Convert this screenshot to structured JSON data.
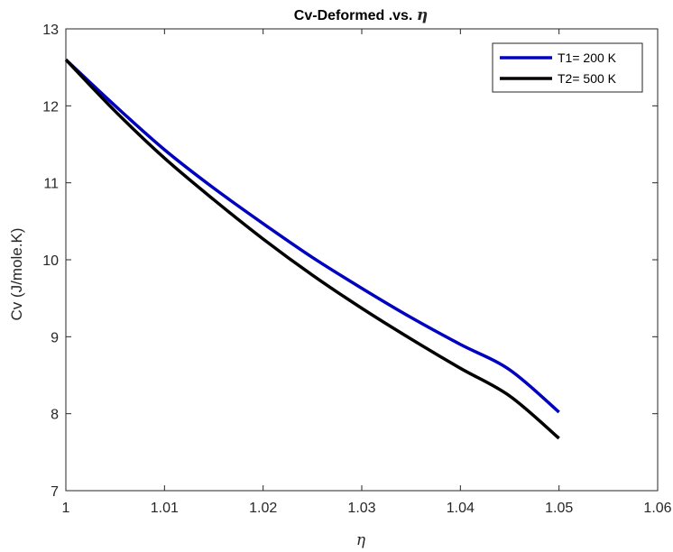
{
  "chart_data": {
    "type": "line",
    "title_prefix": "Cv-Deformed .vs. ",
    "title_symbol": "η",
    "xlabel": "η",
    "ylabel": "Cv (J/mole.K)",
    "xlim": [
      1,
      1.06
    ],
    "ylim": [
      7,
      13
    ],
    "xticks": [
      "1",
      "1.01",
      "1.02",
      "1.03",
      "1.04",
      "1.05",
      "1.06"
    ],
    "yticks": [
      "7",
      "8",
      "9",
      "10",
      "11",
      "12",
      "13"
    ],
    "legend_position": "top-right",
    "grid": false,
    "series": [
      {
        "name": "T1= 200 K",
        "color": "#0000bf",
        "x": [
          1.0,
          1.005,
          1.01,
          1.015,
          1.02,
          1.025,
          1.03,
          1.035,
          1.04,
          1.045,
          1.05
        ],
        "y": [
          12.6,
          12.0,
          11.43,
          10.93,
          10.47,
          10.03,
          9.63,
          9.25,
          8.9,
          8.57,
          8.02
        ]
      },
      {
        "name": "T2= 500 K",
        "color": "#000000",
        "x": [
          1.0,
          1.005,
          1.01,
          1.015,
          1.02,
          1.025,
          1.03,
          1.035,
          1.04,
          1.045,
          1.05
        ],
        "y": [
          12.6,
          11.93,
          11.32,
          10.78,
          10.27,
          9.8,
          9.37,
          8.97,
          8.59,
          8.23,
          7.68
        ]
      }
    ]
  }
}
